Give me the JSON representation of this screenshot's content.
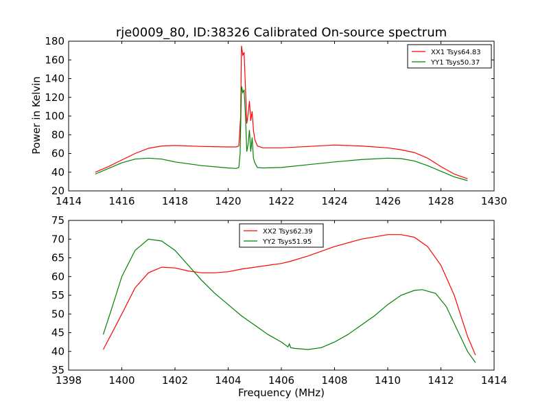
{
  "figure": {
    "title": "rje0009_80, ID:38326 Calibrated On-source spectrum",
    "ylabel": "Power in Kelvin",
    "xlabel": "Frequency (MHz)"
  },
  "chart_data": [
    {
      "type": "line",
      "xlim": [
        1414,
        1430
      ],
      "ylim": [
        20,
        180
      ],
      "xticks": [
        "1414",
        "1416",
        "1418",
        "1420",
        "1422",
        "1424",
        "1426",
        "1428",
        "1430"
      ],
      "yticks": [
        "20",
        "40",
        "60",
        "80",
        "100",
        "120",
        "140",
        "160",
        "180"
      ],
      "legend_position": "top-right",
      "grid": false,
      "series": [
        {
          "name": "XX1 Tsys64.83",
          "color": "#ff0000",
          "points": [
            [
              1415.0,
              40
            ],
            [
              1415.5,
              46
            ],
            [
              1416.0,
              53
            ],
            [
              1416.5,
              60
            ],
            [
              1417.0,
              65.5
            ],
            [
              1417.5,
              68
            ],
            [
              1418.0,
              68.5
            ],
            [
              1419.0,
              67.5
            ],
            [
              1420.0,
              67
            ],
            [
              1420.3,
              67
            ],
            [
              1420.4,
              68
            ],
            [
              1420.47,
              100
            ],
            [
              1420.5,
              175
            ],
            [
              1420.55,
              165
            ],
            [
              1420.6,
              168
            ],
            [
              1420.65,
              130
            ],
            [
              1420.7,
              92
            ],
            [
              1420.75,
              102
            ],
            [
              1420.8,
              116
            ],
            [
              1420.85,
              95
            ],
            [
              1420.9,
              105
            ],
            [
              1420.95,
              85
            ],
            [
              1421.0,
              75
            ],
            [
              1421.1,
              68
            ],
            [
              1421.3,
              66
            ],
            [
              1422.0,
              66
            ],
            [
              1423.0,
              67.5
            ],
            [
              1424.0,
              69
            ],
            [
              1425.0,
              68
            ],
            [
              1426.0,
              66
            ],
            [
              1426.5,
              64
            ],
            [
              1427.0,
              61
            ],
            [
              1427.5,
              55
            ],
            [
              1428.0,
              46
            ],
            [
              1428.5,
              38
            ],
            [
              1429.0,
              33
            ]
          ]
        },
        {
          "name": "YY1 Tsys50.37",
          "color": "#008000",
          "points": [
            [
              1415.0,
              38
            ],
            [
              1415.5,
              44
            ],
            [
              1416.0,
              50
            ],
            [
              1416.5,
              54
            ],
            [
              1417.0,
              55
            ],
            [
              1417.5,
              54
            ],
            [
              1418.0,
              51
            ],
            [
              1419.0,
              47
            ],
            [
              1420.0,
              44.5
            ],
            [
              1420.3,
              44
            ],
            [
              1420.4,
              45
            ],
            [
              1420.45,
              60
            ],
            [
              1420.5,
              132
            ],
            [
              1420.55,
              125
            ],
            [
              1420.6,
              128
            ],
            [
              1420.65,
              100
            ],
            [
              1420.7,
              62
            ],
            [
              1420.75,
              70
            ],
            [
              1420.8,
              85
            ],
            [
              1420.85,
              62
            ],
            [
              1420.9,
              77
            ],
            [
              1420.95,
              55
            ],
            [
              1421.0,
              50
            ],
            [
              1421.1,
              45
            ],
            [
              1421.3,
              44.5
            ],
            [
              1422.0,
              45
            ],
            [
              1423.0,
              48
            ],
            [
              1424.0,
              51
            ],
            [
              1425.0,
              53.5
            ],
            [
              1426.0,
              55
            ],
            [
              1426.5,
              54.5
            ],
            [
              1427.0,
              52
            ],
            [
              1427.5,
              47
            ],
            [
              1428.0,
              41
            ],
            [
              1428.5,
              35
            ],
            [
              1429.0,
              31
            ]
          ]
        }
      ]
    },
    {
      "type": "line",
      "xlim": [
        1398,
        1414
      ],
      "ylim": [
        35,
        75
      ],
      "xticks": [
        "1398",
        "1400",
        "1402",
        "1404",
        "1406",
        "1408",
        "1410",
        "1412",
        "1414"
      ],
      "yticks": [
        "35",
        "40",
        "45",
        "50",
        "55",
        "60",
        "65",
        "70",
        "75"
      ],
      "legend_position": "top-center",
      "grid": false,
      "series": [
        {
          "name": "XX2 Tsys62.39",
          "color": "#ff0000",
          "points": [
            [
              1399.3,
              40.5
            ],
            [
              1399.6,
              44.5
            ],
            [
              1400.0,
              50
            ],
            [
              1400.5,
              57
            ],
            [
              1401.0,
              61
            ],
            [
              1401.5,
              62.5
            ],
            [
              1402.0,
              62.3
            ],
            [
              1402.5,
              61.5
            ],
            [
              1403.0,
              61
            ],
            [
              1403.5,
              61
            ],
            [
              1404.0,
              61.3
            ],
            [
              1404.5,
              62
            ],
            [
              1405.0,
              62.5
            ],
            [
              1405.5,
              63
            ],
            [
              1406.0,
              63.5
            ],
            [
              1406.3,
              64
            ],
            [
              1407.0,
              65.5
            ],
            [
              1408.0,
              68
            ],
            [
              1409.0,
              70
            ],
            [
              1410.0,
              71.2
            ],
            [
              1410.5,
              71.2
            ],
            [
              1411.0,
              70.5
            ],
            [
              1411.5,
              68
            ],
            [
              1412.0,
              63
            ],
            [
              1412.5,
              55
            ],
            [
              1413.0,
              44
            ],
            [
              1413.3,
              39
            ]
          ]
        },
        {
          "name": "YY2 Tsys51.95",
          "color": "#008000",
          "points": [
            [
              1399.3,
              44.5
            ],
            [
              1399.6,
              51
            ],
            [
              1400.0,
              60
            ],
            [
              1400.5,
              67
            ],
            [
              1401.0,
              70
            ],
            [
              1401.5,
              69.5
            ],
            [
              1402.0,
              67
            ],
            [
              1402.5,
              63
            ],
            [
              1403.0,
              59
            ],
            [
              1403.5,
              55.5
            ],
            [
              1404.0,
              52.5
            ],
            [
              1404.5,
              49.5
            ],
            [
              1405.0,
              47
            ],
            [
              1405.5,
              44.5
            ],
            [
              1406.0,
              42.5
            ],
            [
              1406.25,
              41.2
            ],
            [
              1406.3,
              42
            ],
            [
              1406.35,
              41
            ],
            [
              1406.5,
              40.8
            ],
            [
              1407.0,
              40.5
            ],
            [
              1407.5,
              41
            ],
            [
              1408.0,
              42.5
            ],
            [
              1408.5,
              44.5
            ],
            [
              1409.0,
              47
            ],
            [
              1409.5,
              49.5
            ],
            [
              1410.0,
              52.5
            ],
            [
              1410.5,
              55
            ],
            [
              1411.0,
              56.3
            ],
            [
              1411.3,
              56.5
            ],
            [
              1411.8,
              55.5
            ],
            [
              1412.2,
              52
            ],
            [
              1412.6,
              46
            ],
            [
              1413.0,
              40
            ],
            [
              1413.3,
              37
            ]
          ]
        }
      ]
    }
  ]
}
